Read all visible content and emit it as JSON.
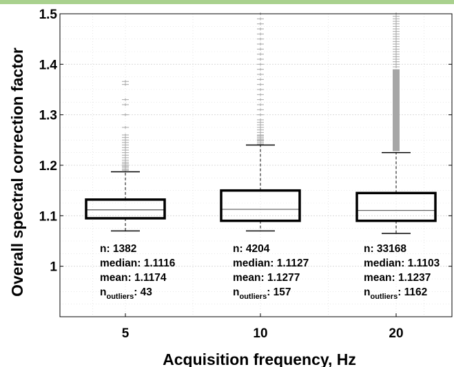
{
  "chart_data": {
    "type": "box",
    "xlabel": "Acquisition frequency, Hz",
    "ylabel": "Overall spectral correction factor",
    "ylim": [
      0.9,
      1.5
    ],
    "yticks": [
      "1",
      "1.1",
      "1.2",
      "1.3",
      "1.4",
      "1.5"
    ],
    "grid": true,
    "categories": [
      "5",
      "10",
      "20"
    ],
    "boxes": [
      {
        "category": "5",
        "whisker_low": 1.07,
        "q1": 1.095,
        "median": 1.1116,
        "q3": 1.132,
        "whisker_high": 1.187,
        "outliers": [
          1.19,
          1.192,
          1.195,
          1.198,
          1.2,
          1.203,
          1.206,
          1.21,
          1.215,
          1.22,
          1.225,
          1.23,
          1.235,
          1.24,
          1.245,
          1.25,
          1.255,
          1.26,
          1.275,
          1.3,
          1.32,
          1.33,
          1.36,
          1.366
        ],
        "stats": {
          "n": "n: 1382",
          "median": "median: 1.1116",
          "mean": "mean: 1.1174",
          "outliers_prefix": "n",
          "outliers_sub": "outliers",
          "outliers_value": ": 43"
        }
      },
      {
        "category": "10",
        "whisker_low": 1.07,
        "q1": 1.09,
        "median": 1.1127,
        "q3": 1.15,
        "whisker_high": 1.24,
        "outliers": [
          1.242,
          1.245,
          1.248,
          1.25,
          1.252,
          1.255,
          1.258,
          1.26,
          1.265,
          1.27,
          1.275,
          1.28,
          1.285,
          1.29,
          1.3,
          1.31,
          1.32,
          1.33,
          1.34,
          1.35,
          1.36,
          1.37,
          1.38,
          1.39,
          1.4,
          1.41,
          1.42,
          1.43,
          1.44,
          1.45,
          1.46,
          1.47,
          1.48,
          1.49,
          1.5
        ],
        "stats": {
          "n": "n: 4204",
          "median": "median: 1.1127",
          "mean": "mean: 1.1277",
          "outliers_prefix": "n",
          "outliers_sub": "outliers",
          "outliers_value": ": 157"
        }
      },
      {
        "category": "20",
        "whisker_low": 1.065,
        "q1": 1.09,
        "median": 1.1103,
        "q3": 1.145,
        "whisker_high": 1.225,
        "outliers_dense_range": [
          1.228,
          1.39
        ],
        "outliers": [
          1.395,
          1.4,
          1.405,
          1.41,
          1.415,
          1.42,
          1.425,
          1.43,
          1.435,
          1.44,
          1.445,
          1.45,
          1.455,
          1.46,
          1.465,
          1.47,
          1.475,
          1.48,
          1.485,
          1.49,
          1.495,
          1.5
        ],
        "stats": {
          "n": "n: 33168",
          "median": "median: 1.1103",
          "mean": "mean: 1.1237",
          "outliers_prefix": "n",
          "outliers_sub": "outliers",
          "outliers_value": ": 1162"
        }
      }
    ],
    "colors": {
      "box": "#000000",
      "outlier": "#a6a6a6",
      "grid": "#d9d9d9",
      "banner": "#a9d18e"
    }
  }
}
